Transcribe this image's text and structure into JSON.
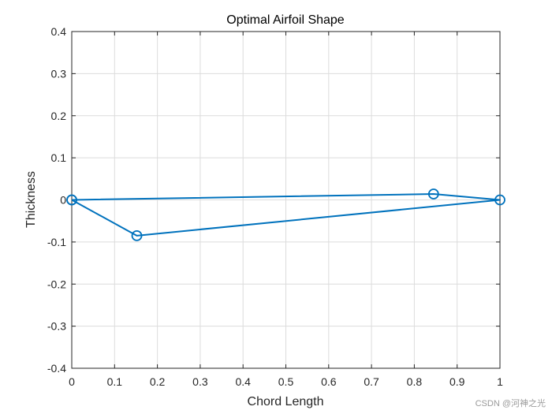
{
  "chart_data": {
    "type": "line",
    "title": "Optimal Airfoil Shape",
    "xlabel": "Chord Length",
    "ylabel": "Thickness",
    "xlim": [
      0,
      1
    ],
    "ylim": [
      -0.4,
      0.4
    ],
    "xticks": [
      "0",
      "0.1",
      "0.2",
      "0.3",
      "0.4",
      "0.5",
      "0.6",
      "0.7",
      "0.8",
      "0.9",
      "1"
    ],
    "yticks": [
      "-0.4",
      "-0.3",
      "-0.2",
      "-0.1",
      "0",
      "0.1",
      "0.2",
      "0.3",
      "0.4"
    ],
    "grid": true,
    "marker": "circle",
    "series": [
      {
        "x": [
          0,
          0.845,
          1,
          0.152,
          0
        ],
        "y": [
          0,
          0.014,
          0,
          -0.085,
          0
        ],
        "color": "#0072BD"
      }
    ]
  },
  "watermark": "CSDN @河神之光"
}
